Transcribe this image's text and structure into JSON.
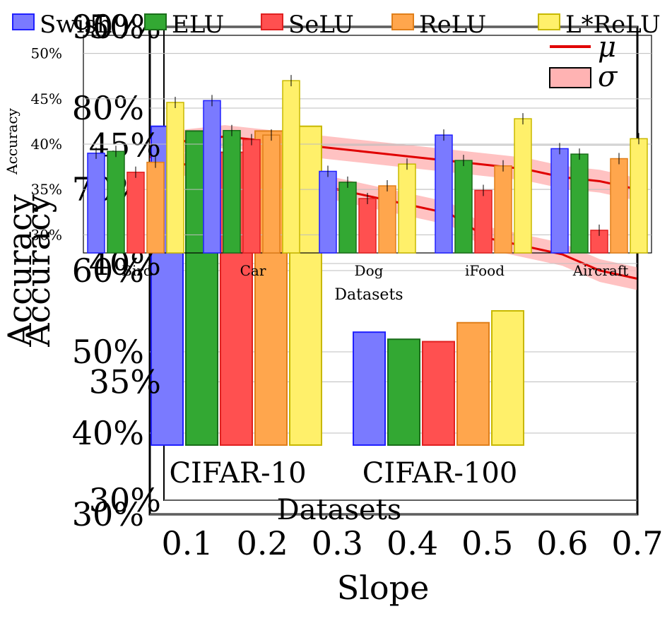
{
  "legend_fine": {
    "items": [
      {
        "label": "Swish",
        "color": "#7a7aff",
        "edge": "#2020ff"
      },
      {
        "label": "ELU",
        "color": "#33a833",
        "edge": "#1a6e1a"
      },
      {
        "label": "SeLU",
        "color": "#ff5050",
        "edge": "#e02020"
      },
      {
        "label": "ReLU",
        "color": "#ffa64d",
        "edge": "#e07f1a"
      },
      {
        "label": "L*ReLU",
        "color": "#fff06a",
        "edge": "#c8b800"
      }
    ]
  },
  "legend_line": {
    "mu": "μ",
    "sigma": "σ"
  },
  "chart_data": [
    {
      "type": "line",
      "xlabel": "Slope",
      "ylabel": "Accuracy",
      "x_ticks": [
        "0.1",
        "0.2",
        "0.3",
        "0.4",
        "0.5",
        "0.6",
        "0.7"
      ],
      "y_ticks": [
        "30%",
        "40%",
        "50%",
        "60%",
        "70%",
        "80%",
        "90%"
      ],
      "ylim": [
        30,
        90
      ],
      "series": [
        {
          "x": [
            0.05,
            0.1,
            0.15,
            0.2,
            0.25,
            0.3,
            0.35,
            0.4,
            0.45,
            0.5,
            0.55,
            0.6,
            0.65,
            0.7
          ],
          "mu": [
            75,
            76,
            76.5,
            76,
            75.5,
            75,
            74.5,
            74,
            73.5,
            73,
            72.5,
            71.5,
            71,
            70
          ]
        },
        {
          "x": [
            0.05,
            0.1,
            0.15,
            0.2,
            0.25,
            0.3,
            0.35,
            0.4,
            0.45,
            0.5,
            0.55,
            0.6,
            0.65,
            0.7
          ],
          "mu": [
            74,
            73,
            72.5,
            72,
            71,
            70,
            69,
            68,
            67,
            64,
            63,
            62,
            60,
            59
          ]
        }
      ]
    },
    {
      "type": "bar",
      "xlabel": "Datasets",
      "ylabel": "Accuracy",
      "categories": [
        "CIFAR-10",
        "CIFAR-100"
      ],
      "y_ticks": [
        "30%",
        "35%",
        "40%",
        "45%",
        "50%"
      ],
      "ylim": [
        30,
        50
      ],
      "series": [
        {
          "name": "Swish",
          "values": [
            45.8,
            37.1
          ]
        },
        {
          "name": "ELU",
          "values": [
            45.6,
            36.8
          ]
        },
        {
          "name": "SeLU",
          "values": [
            44.7,
            36.7
          ]
        },
        {
          "name": "ReLU",
          "values": [
            45.6,
            37.5
          ]
        },
        {
          "name": "L*ReLU",
          "values": [
            45.8,
            38.0
          ]
        }
      ]
    },
    {
      "type": "bar",
      "xlabel": "Datasets",
      "ylabel": "Accuracy",
      "categories": [
        "Bird",
        "Car",
        "Dog",
        "iFood",
        "Aircraft"
      ],
      "y_ticks": [
        "30%",
        "35%",
        "40%",
        "45%",
        "50%"
      ],
      "ylim": [
        28,
        52
      ],
      "series": [
        {
          "name": "Swish",
          "values": [
            39.0,
            44.8,
            37.0,
            41.0,
            39.5
          ]
        },
        {
          "name": "ELU",
          "values": [
            39.2,
            41.5,
            35.8,
            38.2,
            38.9
          ]
        },
        {
          "name": "SeLU",
          "values": [
            36.9,
            40.5,
            34.0,
            34.9,
            30.5
          ]
        },
        {
          "name": "ReLU",
          "values": [
            38.0,
            41.0,
            35.4,
            37.6,
            38.4
          ]
        },
        {
          "name": "L*ReLU",
          "values": [
            44.6,
            47.0,
            37.8,
            42.8,
            40.6
          ]
        }
      ]
    }
  ]
}
